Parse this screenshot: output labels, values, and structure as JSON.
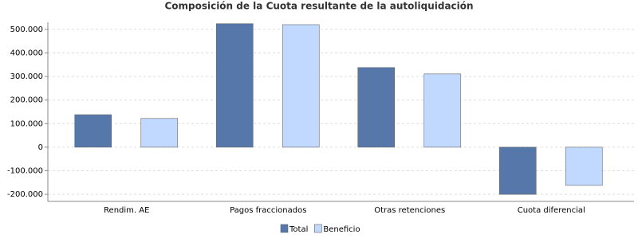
{
  "chart_data": {
    "type": "bar",
    "title": "Composición de la Cuota resultante de la autoliquidación",
    "categories": [
      "Rendim. AE",
      "Pagos fraccionados",
      "Otras retenciones",
      "Cuota diferencial"
    ],
    "series": [
      {
        "name": "Total",
        "color": "#5577aa",
        "values": [
          138000,
          524000,
          338000,
          -200000
        ]
      },
      {
        "name": "Beneficio",
        "color": "#c2d9ff",
        "values": [
          122000,
          520000,
          311000,
          -162000
        ]
      }
    ],
    "ylim": [
      -230000,
      530000
    ],
    "yticks": [
      {
        "value": -200000,
        "label": "-200.000"
      },
      {
        "value": -100000,
        "label": "-100.000"
      },
      0,
      {
        "value": 100000,
        "label": "100.000"
      },
      {
        "value": 200000,
        "label": "200.000"
      },
      {
        "value": 300000,
        "label": "300.000"
      },
      {
        "value": 400000,
        "label": "400.000"
      },
      {
        "value": 500000,
        "label": "500.000"
      }
    ],
    "grid": true
  }
}
